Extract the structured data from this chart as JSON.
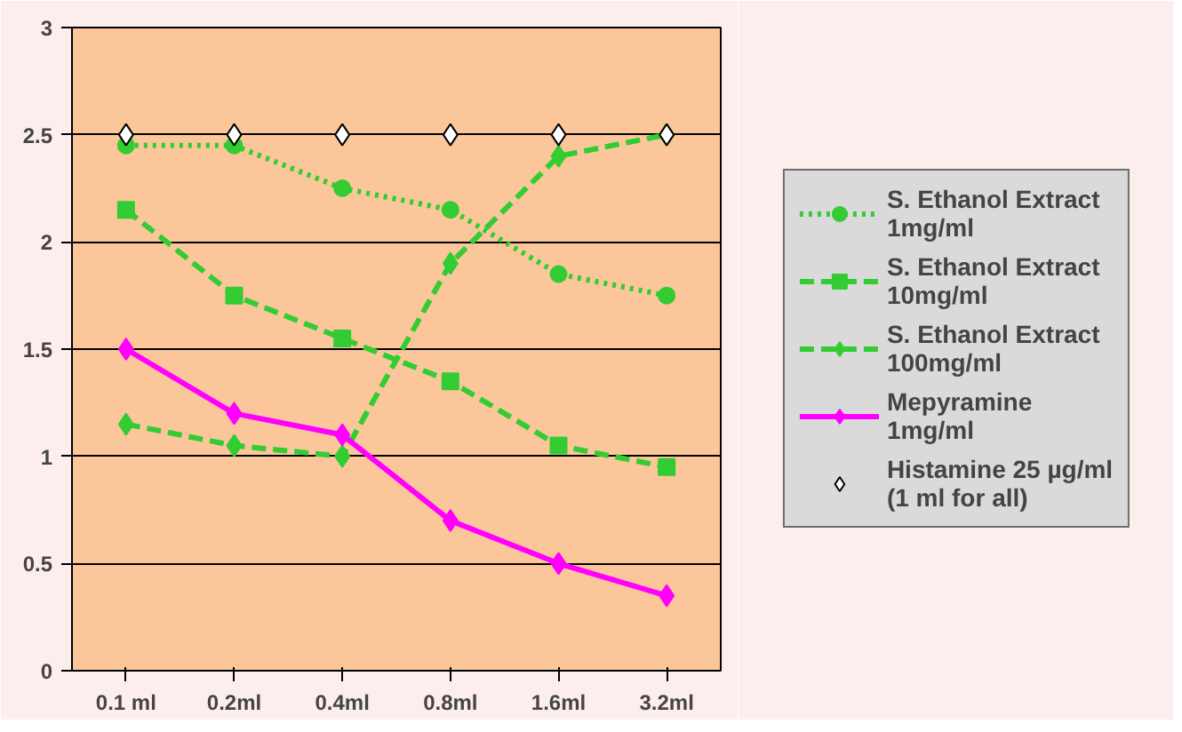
{
  "chart_data": {
    "type": "line",
    "categories": [
      "0.1 ml",
      "0.2ml",
      "0.4ml",
      "0.8ml",
      "1.6ml",
      "3.2ml"
    ],
    "ylim": [
      0,
      3
    ],
    "yticks": [
      0,
      0.5,
      1,
      1.5,
      2,
      2.5,
      3
    ],
    "grid": "y",
    "legend": "right",
    "series": [
      {
        "name": "S. Ethanol Extract\n1mg/ml",
        "color": "#33cc33",
        "line_style": "dotted",
        "marker": "circle",
        "values": [
          2.45,
          2.45,
          2.25,
          2.15,
          1.85,
          1.75
        ]
      },
      {
        "name": "S. Ethanol Extract\n10mg/ml",
        "color": "#33cc33",
        "line_style": "dashed",
        "marker": "square",
        "values": [
          2.15,
          1.75,
          1.55,
          1.35,
          1.05,
          0.95
        ]
      },
      {
        "name": "S. Ethanol Extract\n100mg/ml",
        "color": "#33cc33",
        "line_style": "dashed",
        "marker": "diamond",
        "values": [
          1.15,
          1.05,
          1.0,
          1.9,
          2.4,
          2.5
        ]
      },
      {
        "name": "Mepyramine\n1mg/ml",
        "color": "#ff00ff",
        "line_style": "solid",
        "marker": "diamond",
        "values": [
          1.5,
          1.2,
          1.1,
          0.7,
          0.5,
          0.35
        ]
      },
      {
        "name": "Histamine 25 µg/ml\n(1 ml for all)",
        "type": "scatter",
        "color": "#ffffff",
        "marker": "diamond",
        "values": [
          2.5,
          2.5,
          2.5,
          2.5,
          2.5,
          2.5
        ]
      }
    ]
  }
}
